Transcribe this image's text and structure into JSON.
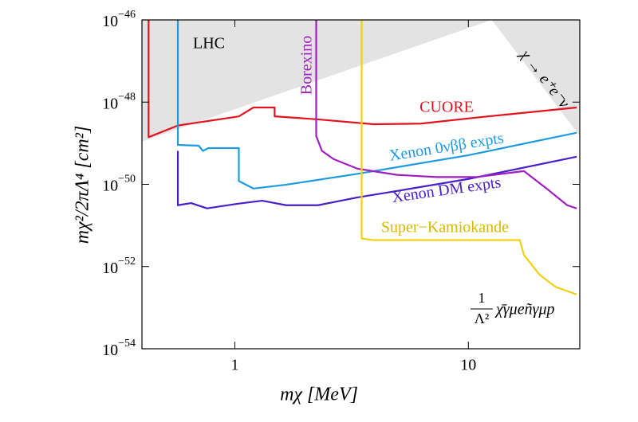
{
  "chart_data": {
    "type": "line",
    "xlabel": "mχ [MeV]",
    "ylabel": "mχ²/2πΛ⁴ [cm²]",
    "xscale": "log",
    "yscale": "log",
    "xlim": [
      0.4,
      30
    ],
    "ylim": [
      1e-54,
      1e-46
    ],
    "xticks": [
      1,
      10
    ],
    "yticks": [
      {
        "value": 1e-46,
        "label": "10−46"
      },
      {
        "value": 1e-48,
        "label": "10−48"
      },
      {
        "value": 1e-50,
        "label": "10−50"
      },
      {
        "value": 1e-52,
        "label": "10−52"
      },
      {
        "value": 1e-54,
        "label": "10−54"
      }
    ],
    "regions": [
      {
        "name": "LHC",
        "color": "#e3e3e3",
        "x": [
          0.4,
          0.4,
          12.6
        ],
        "y": [
          1e-46,
          1.1e-49,
          1e-46
        ]
      },
      {
        "name": "χ → e⁺e⁻ν",
        "color": "#e3e3e3",
        "x": [
          12.6,
          30,
          30
        ],
        "y": [
          1e-46,
          1e-46,
          1.5e-49
        ]
      }
    ],
    "series": [
      {
        "name": "CUORE",
        "color": "#e0141e",
        "x": [
          0.427,
          0.427,
          0.57,
          1.04,
          1.2,
          1.48,
          1.48,
          2.27,
          3.92,
          6.26,
          10.8,
          29.1
        ],
        "y": [
          1e-46,
          1.4e-49,
          2.7e-49,
          4.5e-49,
          7.4e-49,
          7.4e-49,
          4.5e-49,
          3.8e-49,
          2.9e-49,
          3e-49,
          4.2e-49,
          7.4e-49
        ]
      },
      {
        "name": "Xenon 0νββ expts",
        "color": "#1e9be0",
        "x": [
          0.57,
          0.57,
          0.7,
          0.73,
          0.77,
          1.04,
          1.04,
          1.2,
          1.66,
          3.35,
          10,
          29.1
        ],
        "y": [
          1e-46,
          9.1e-50,
          8.7e-50,
          6.5e-50,
          7.6e-50,
          7.6e-50,
          1.2e-50,
          7.9e-51,
          9.8e-51,
          1.8e-50,
          5.1e-50,
          1.8e-49
        ]
      },
      {
        "name": "Xenon DM expts",
        "color": "#4a1ec8",
        "x": [
          0.57,
          0.57,
          0.65,
          0.76,
          1.04,
          1.31,
          1.66,
          2.27,
          3.35,
          4.95,
          10,
          29.1
        ],
        "y": [
          6.5e-50,
          3.1e-51,
          3.5e-51,
          2.6e-51,
          3.4e-51,
          4e-51,
          3.1e-51,
          3.1e-51,
          4.8e-51,
          6.9e-51,
          1.35e-50,
          4.7e-50
        ]
      },
      {
        "name": "Borexino",
        "color": "#a01ec0",
        "x": [
          2.23,
          2.23,
          2.36,
          2.65,
          3.35,
          4.95,
          7.32,
          10.8,
          17.3,
          21.8,
          26.5,
          29.1
        ],
        "y": [
          1e-46,
          1.5e-49,
          6.5e-50,
          4.1e-50,
          2.4e-50,
          1.7e-50,
          1.5e-50,
          1.5e-50,
          2.1e-50,
          7.6e-51,
          3.1e-51,
          2.6e-51
        ]
      },
      {
        "name": "Super−Kamiokande",
        "color": "#f0d010",
        "x": [
          3.49,
          3.49,
          3.92,
          16.6,
          17.3,
          20.2,
          23.6,
          29.1
        ],
        "y": [
          1e-46,
          4.8e-52,
          4.4e-52,
          4.4e-52,
          1.9e-52,
          6.3e-53,
          3.2e-53,
          2.1e-53
        ]
      }
    ],
    "annotations": {
      "operator_numerator": "1",
      "operator_denominator": "Λ²",
      "operator": "χ̄γμeñγμp"
    }
  }
}
